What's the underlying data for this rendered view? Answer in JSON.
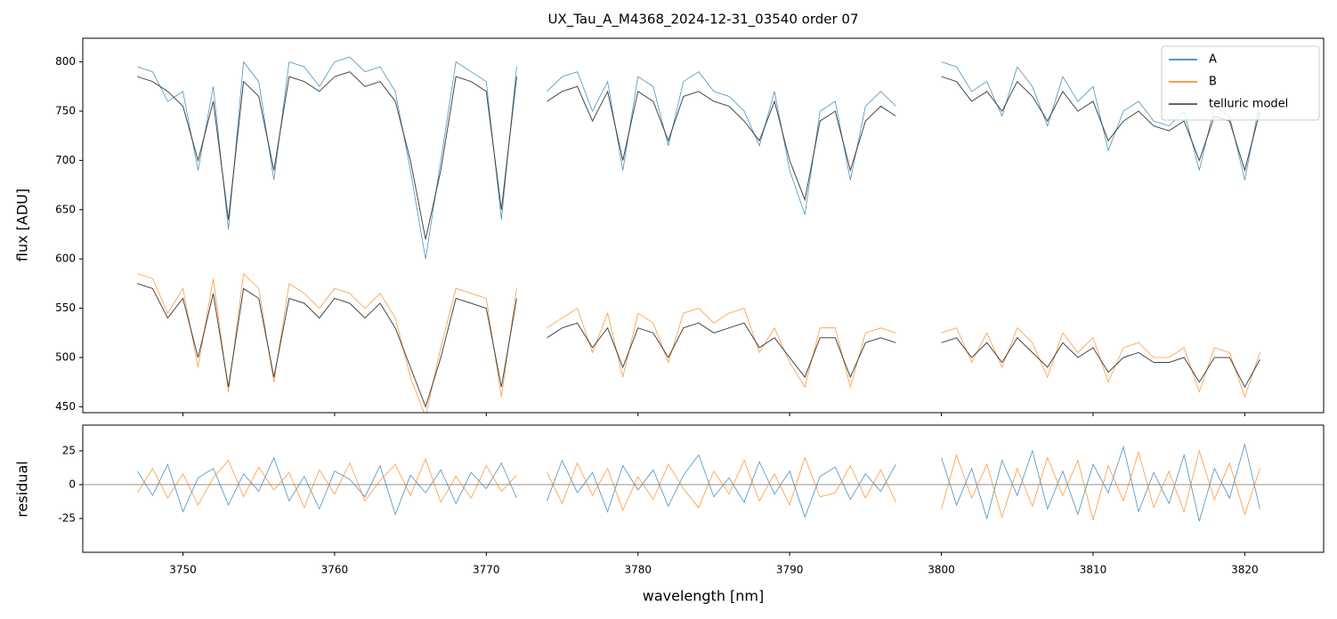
{
  "chart_data": [
    {
      "type": "line",
      "title": "UX_Tau_A_M4368_2024-12-31_03540  order 07",
      "ylabel": "flux [ADU]",
      "x": [
        3747,
        3748,
        3749,
        3750,
        3751,
        3752,
        3753,
        3754,
        3755,
        3756,
        3757,
        3758,
        3759,
        3760,
        3761,
        3762,
        3763,
        3764,
        3765,
        3766,
        3767,
        3768,
        3769,
        3770,
        3771,
        3772,
        3773,
        3774,
        3775,
        3776,
        3777,
        3778,
        3779,
        3780,
        3781,
        3782,
        3783,
        3784,
        3785,
        3786,
        3787,
        3788,
        3789,
        3790,
        3791,
        3792,
        3793,
        3794,
        3795,
        3796,
        3797,
        3798,
        3800,
        3801,
        3802,
        3803,
        3804,
        3805,
        3806,
        3807,
        3808,
        3809,
        3810,
        3811,
        3812,
        3813,
        3814,
        3815,
        3816,
        3817,
        3818,
        3819,
        3820,
        3821
      ],
      "series": [
        {
          "name": "A",
          "color": "#1f77b4",
          "values": [
            795,
            790,
            760,
            770,
            690,
            775,
            630,
            800,
            780,
            680,
            800,
            795,
            775,
            800,
            805,
            790,
            795,
            770,
            690,
            600,
            700,
            800,
            790,
            780,
            640,
            795,
            null,
            770,
            785,
            790,
            750,
            780,
            690,
            785,
            775,
            715,
            780,
            790,
            770,
            765,
            750,
            715,
            770,
            690,
            645,
            750,
            760,
            680,
            755,
            770,
            755,
            null,
            800,
            795,
            770,
            780,
            745,
            795,
            775,
            735,
            785,
            760,
            775,
            710,
            750,
            760,
            740,
            735,
            750,
            690,
            755,
            745,
            680,
            760
          ]
        },
        {
          "name": "B",
          "color": "#ff7f0e",
          "values": [
            585,
            580,
            545,
            570,
            490,
            580,
            465,
            585,
            570,
            475,
            575,
            565,
            550,
            570,
            565,
            550,
            565,
            540,
            480,
            440,
            510,
            570,
            565,
            560,
            460,
            570,
            null,
            530,
            540,
            550,
            505,
            545,
            480,
            545,
            535,
            495,
            545,
            550,
            535,
            545,
            550,
            505,
            530,
            495,
            470,
            530,
            530,
            470,
            525,
            530,
            525,
            null,
            525,
            530,
            495,
            525,
            490,
            530,
            515,
            480,
            525,
            505,
            520,
            475,
            510,
            515,
            500,
            500,
            510,
            465,
            510,
            505,
            460,
            505
          ]
        },
        {
          "name": "telluric model",
          "color": "#333333",
          "values": [
            785,
            780,
            770,
            755,
            700,
            760,
            640,
            780,
            765,
            690,
            785,
            780,
            770,
            785,
            790,
            775,
            780,
            760,
            700,
            620,
            690,
            785,
            780,
            770,
            650,
            785,
            null,
            760,
            770,
            775,
            740,
            770,
            700,
            770,
            760,
            720,
            765,
            770,
            760,
            755,
            740,
            720,
            760,
            700,
            660,
            740,
            750,
            690,
            740,
            755,
            745,
            null,
            785,
            780,
            760,
            770,
            750,
            780,
            765,
            740,
            770,
            750,
            760,
            720,
            740,
            750,
            735,
            730,
            740,
            700,
            745,
            740,
            690,
            750
          ]
        },
        {
          "color": "#333333",
          "values": [
            575,
            570,
            540,
            560,
            500,
            565,
            470,
            570,
            560,
            480,
            560,
            555,
            540,
            560,
            555,
            540,
            555,
            530,
            490,
            450,
            500,
            560,
            555,
            550,
            470,
            560,
            null,
            520,
            530,
            535,
            510,
            530,
            490,
            530,
            525,
            500,
            530,
            535,
            525,
            530,
            535,
            510,
            520,
            500,
            480,
            520,
            520,
            480,
            515,
            520,
            515,
            null,
            515,
            520,
            500,
            515,
            495,
            520,
            505,
            490,
            515,
            500,
            510,
            485,
            500,
            505,
            495,
            495,
            500,
            475,
            500,
            500,
            470,
            498
          ]
        }
      ],
      "xlim": [
        3743.4,
        3825.2
      ],
      "ylim": [
        444,
        824
      ],
      "yticks": [
        450,
        500,
        550,
        600,
        650,
        700,
        750,
        800
      ],
      "legend": "upper right"
    },
    {
      "type": "line",
      "xlabel": "wavelength [nm]",
      "ylabel": "residual",
      "x": [
        3747,
        3748,
        3749,
        3750,
        3751,
        3752,
        3753,
        3754,
        3755,
        3756,
        3757,
        3758,
        3759,
        3760,
        3761,
        3762,
        3763,
        3764,
        3765,
        3766,
        3767,
        3768,
        3769,
        3770,
        3771,
        3772,
        3773,
        3774,
        3775,
        3776,
        3777,
        3778,
        3779,
        3780,
        3781,
        3782,
        3783,
        3784,
        3785,
        3786,
        3787,
        3788,
        3789,
        3790,
        3791,
        3792,
        3793,
        3794,
        3795,
        3796,
        3797,
        3798,
        3800,
        3801,
        3802,
        3803,
        3804,
        3805,
        3806,
        3807,
        3808,
        3809,
        3810,
        3811,
        3812,
        3813,
        3814,
        3815,
        3816,
        3817,
        3818,
        3819,
        3820,
        3821
      ],
      "series": [
        {
          "color": "#1f77b4",
          "values": [
            10,
            -8,
            15,
            -20,
            5,
            12,
            -15,
            8,
            -5,
            20,
            -12,
            6,
            -18,
            10,
            4,
            -9,
            14,
            -22,
            7,
            -6,
            11,
            -14,
            9,
            -3,
            16,
            -10,
            null,
            -12,
            18,
            -6,
            9,
            -20,
            14,
            -4,
            11,
            -16,
            7,
            22,
            -9,
            5,
            -13,
            17,
            -7,
            10,
            -24,
            6,
            13,
            -11,
            8,
            -5,
            15,
            null,
            20,
            -15,
            12,
            -25,
            18,
            -8,
            25,
            -18,
            10,
            -22,
            15,
            -6,
            28,
            -20,
            9,
            -14,
            22,
            -27,
            12,
            -10,
            30,
            -18
          ]
        },
        {
          "color": "#ff7f0e",
          "values": [
            -6,
            12,
            -10,
            8,
            -15,
            5,
            18,
            -9,
            13,
            -4,
            9,
            -17,
            11,
            -7,
            16,
            -12,
            3,
            15,
            -8,
            19,
            -13,
            6,
            -10,
            14,
            -5,
            7,
            null,
            9,
            -14,
            16,
            -8,
            12,
            -19,
            6,
            -11,
            15,
            -3,
            -17,
            10,
            -7,
            18,
            -12,
            8,
            -15,
            20,
            -9,
            -6,
            14,
            -10,
            11,
            -13,
            null,
            -18,
            22,
            -10,
            15,
            -24,
            12,
            -16,
            20,
            -8,
            18,
            -26,
            14,
            -12,
            24,
            -17,
            10,
            -20,
            25,
            -11,
            16,
            -22,
            12
          ]
        }
      ],
      "xlim": [
        3743.4,
        3825.2
      ],
      "ylim": [
        -50,
        44
      ],
      "yticks": [
        -25,
        0,
        25
      ],
      "xticks": [
        3750,
        3760,
        3770,
        3780,
        3790,
        3800,
        3810,
        3820
      ]
    }
  ]
}
